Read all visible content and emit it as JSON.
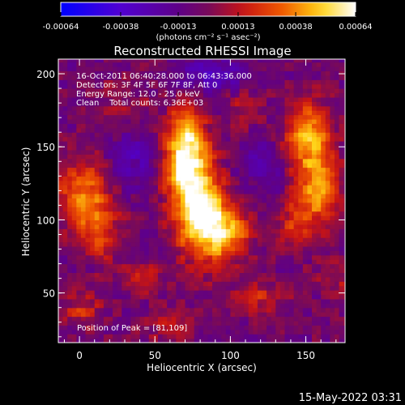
{
  "chart_data": {
    "type": "heatmap",
    "title": "Reconstructed RHESSI Image",
    "xlabel": "Heliocentric X (arcsec)",
    "ylabel": "Heliocentric Y (arcsec)",
    "xlim": [
      -14,
      176
    ],
    "ylim": [
      16,
      210
    ],
    "x_ticks": [
      0,
      50,
      100,
      150
    ],
    "y_ticks": [
      50,
      100,
      150,
      200
    ],
    "grid": false,
    "colorbar": {
      "ticks": [
        -0.00064,
        -0.00038,
        -0.00013,
        0.00013,
        0.00038,
        0.00064
      ],
      "tick_labels": [
        "-0.00064",
        "-0.00038",
        "-0.00013",
        "0.00013",
        "0.00038",
        "0.00064"
      ],
      "unit_label": "(photons cm⁻² s⁻¹ asec⁻²)",
      "range": [
        -0.00064,
        0.00064
      ]
    },
    "annotations": [
      "16-Oct-2011 06:40:28.000 to 06:43:36.000",
      "Detectors: 3F 4F 5F 6F 7F 8F, Att 0",
      "Energy Range: 12.0 - 25.0 keV",
      "Clean    Total counts: 6.36E+03"
    ],
    "peak_label": "Position of Peak = [81,109]",
    "blobs": [
      {
        "x": 78,
        "y": 112,
        "sx": 11,
        "sy": 24,
        "amp": 0.00068
      },
      {
        "x": 96,
        "y": 92,
        "sx": 12,
        "sy": 14,
        "amp": 0.0005
      },
      {
        "x": 70,
        "y": 158,
        "sx": 9,
        "sy": 13,
        "amp": 0.00052
      },
      {
        "x": 66,
        "y": 134,
        "sx": 9,
        "sy": 12,
        "amp": 0.00038
      },
      {
        "x": 152,
        "y": 158,
        "sx": 10,
        "sy": 16,
        "amp": 0.00048
      },
      {
        "x": 158,
        "y": 120,
        "sx": 10,
        "sy": 18,
        "amp": 0.00044
      },
      {
        "x": 140,
        "y": 98,
        "sx": 8,
        "sy": 12,
        "amp": 0.00028
      },
      {
        "x": 4,
        "y": 118,
        "sx": 13,
        "sy": 16,
        "amp": 0.0004
      },
      {
        "x": 12,
        "y": 90,
        "sx": 9,
        "sy": 12,
        "amp": 0.00026
      },
      {
        "x": 2,
        "y": 38,
        "sx": 10,
        "sy": 8,
        "amp": 0.00022
      },
      {
        "x": 42,
        "y": 60,
        "sx": 10,
        "sy": 8,
        "amp": 0.0002
      },
      {
        "x": 120,
        "y": 48,
        "sx": 12,
        "sy": 8,
        "amp": 0.0002
      },
      {
        "x": 60,
        "y": 26,
        "sx": 12,
        "sy": 8,
        "amp": 0.00016
      },
      {
        "x": 110,
        "y": 178,
        "sx": 8,
        "sy": 10,
        "amp": 0.00014
      },
      {
        "x": 30,
        "y": 180,
        "sx": 12,
        "sy": 10,
        "amp": 0.00012
      },
      {
        "x": 170,
        "y": 60,
        "sx": 8,
        "sy": 10,
        "amp": 0.00014
      },
      {
        "x": 118,
        "y": 140,
        "sx": 10,
        "sy": 10,
        "amp": -0.00018
      },
      {
        "x": 36,
        "y": 140,
        "sx": 12,
        "sy": 14,
        "amp": -0.0002
      },
      {
        "x": 90,
        "y": 200,
        "sx": 18,
        "sy": 8,
        "amp": -0.00024
      },
      {
        "x": 130,
        "y": 110,
        "sx": 8,
        "sy": 12,
        "amp": -0.00014
      }
    ],
    "baseline": -5e-05
  },
  "footer": {
    "timestamp": "15-May-2022 03:31"
  }
}
